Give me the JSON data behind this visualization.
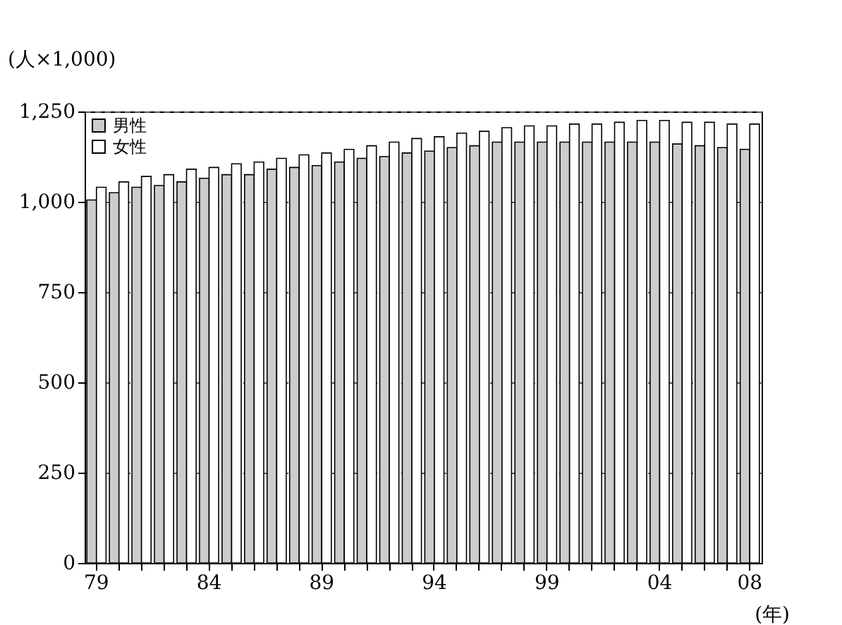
{
  "chart_data": {
    "type": "bar",
    "ylabel": "(人×1,000)",
    "xlabel": "(年)",
    "categories": [
      "79",
      null,
      null,
      null,
      null,
      "84",
      null,
      null,
      null,
      null,
      "89",
      null,
      null,
      null,
      null,
      "94",
      null,
      null,
      null,
      null,
      "99",
      null,
      null,
      null,
      null,
      "04",
      null,
      null,
      null,
      "08"
    ],
    "series": [
      {
        "name": "男性",
        "color": "#cccccc",
        "values": [
          1005,
          1025,
          1040,
          1045,
          1055,
          1065,
          1075,
          1075,
          1090,
          1095,
          1100,
          1110,
          1120,
          1125,
          1135,
          1140,
          1150,
          1155,
          1165,
          1165,
          1165,
          1165,
          1165,
          1165,
          1165,
          1165,
          1160,
          1155,
          1150,
          1145
        ]
      },
      {
        "name": "女性",
        "color": "#ffffff",
        "values": [
          1040,
          1055,
          1070,
          1075,
          1090,
          1095,
          1105,
          1110,
          1120,
          1130,
          1135,
          1145,
          1155,
          1165,
          1175,
          1180,
          1190,
          1195,
          1205,
          1210,
          1210,
          1215,
          1215,
          1220,
          1225,
          1225,
          1220,
          1220,
          1215,
          1215
        ]
      }
    ],
    "ylim": [
      0,
      1250
    ],
    "yticks": [
      0,
      250,
      500,
      750,
      {
        "value": 1000,
        "label": "1,000"
      },
      {
        "value": 1250,
        "label": "1,250"
      }
    ],
    "grid": "y",
    "legend": "top left"
  }
}
